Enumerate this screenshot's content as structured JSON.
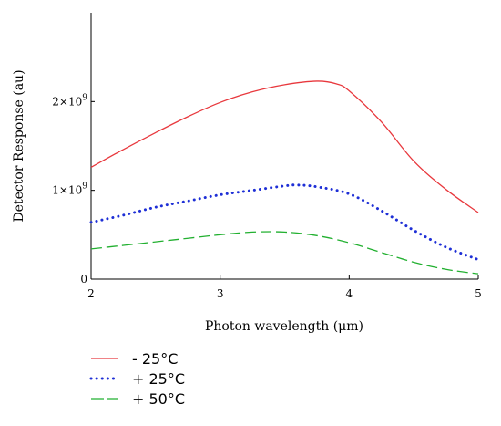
{
  "chart_data": {
    "type": "line",
    "xlabel": "Photon wavelength (μm)",
    "ylabel": "Detector Response (au)",
    "xlim": [
      2,
      5
    ],
    "ylim": [
      0,
      3000000000
    ],
    "x_ticks": [
      2,
      3,
      4,
      5
    ],
    "x_tick_labels": [
      "2",
      "3",
      "4",
      "5"
    ],
    "y_ticks": [
      0,
      1000000000,
      2000000000
    ],
    "y_tick_labels": [
      {
        "base": "0",
        "exp": ""
      },
      {
        "base": "1×10",
        "exp": "9"
      },
      {
        "base": "2×10",
        "exp": "9"
      }
    ],
    "grid": false,
    "legend_placement": "bottom-left",
    "series": [
      {
        "name": "- 25°C",
        "color": "#e8383d",
        "style": "solid",
        "x": [
          2.0,
          2.25,
          2.5,
          2.75,
          3.0,
          3.25,
          3.5,
          3.75,
          3.9,
          4.0,
          4.25,
          4.5,
          4.75,
          5.0
        ],
        "y": [
          1260000000,
          1460000000,
          1650000000,
          1830000000,
          1990000000,
          2110000000,
          2190000000,
          2230000000,
          2200000000,
          2120000000,
          1770000000,
          1330000000,
          1010000000,
          750000000
        ]
      },
      {
        "name": "+ 25°C",
        "color": "#1e2fd6",
        "style": "dotted",
        "x": [
          2.0,
          2.25,
          2.5,
          2.75,
          3.0,
          3.25,
          3.5,
          3.6,
          3.75,
          4.0,
          4.25,
          4.5,
          4.75,
          5.0
        ],
        "y": [
          640000000,
          720000000,
          810000000,
          880000000,
          950000000,
          1000000000,
          1050000000,
          1060000000,
          1040000000,
          960000000,
          770000000,
          550000000,
          360000000,
          220000000
        ]
      },
      {
        "name": "+ 50°C",
        "color": "#22b030",
        "style": "dashed",
        "x": [
          2.0,
          2.25,
          2.5,
          2.75,
          3.0,
          3.25,
          3.5,
          3.75,
          4.0,
          4.25,
          4.5,
          4.75,
          5.0
        ],
        "y": [
          340000000,
          380000000,
          420000000,
          460000000,
          500000000,
          530000000,
          530000000,
          490000000,
          410000000,
          300000000,
          190000000,
          110000000,
          60000000
        ]
      }
    ]
  }
}
